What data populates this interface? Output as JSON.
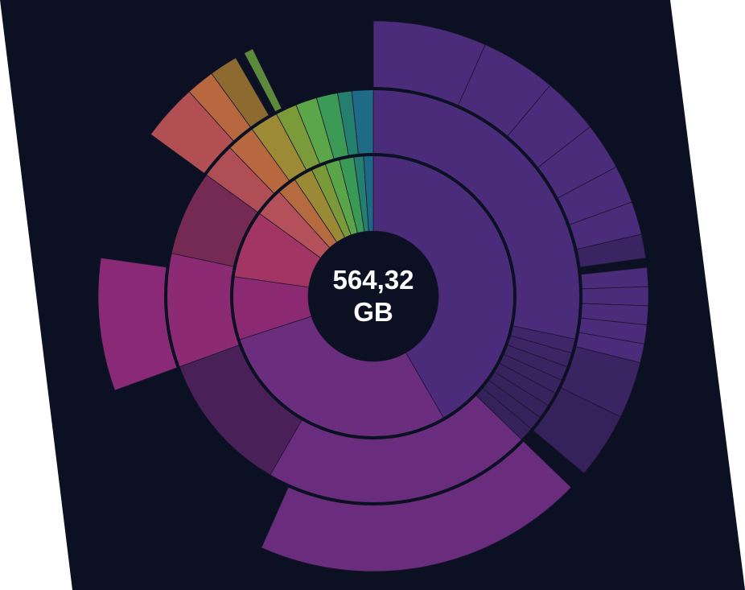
{
  "center": {
    "value_line": "564,32",
    "unit_line": "GB"
  },
  "colors": {
    "panel_background": "#0b1122",
    "page_background": "#ffffff",
    "hole": "#0b1122"
  },
  "chart_data": {
    "type": "sunburst",
    "total": "564,32 GB",
    "rings": [
      {
        "level": 1,
        "segments": [
          {
            "start_deg": 0,
            "end_deg": 150,
            "color": "#4a2c7a"
          },
          {
            "start_deg": 150,
            "end_deg": 252,
            "color": "#6b2e7e"
          },
          {
            "start_deg": 252,
            "end_deg": 278,
            "color": "#8b2a72"
          },
          {
            "start_deg": 278,
            "end_deg": 306,
            "color": "#a33565"
          },
          {
            "start_deg": 306,
            "end_deg": 318,
            "color": "#b4505a"
          },
          {
            "start_deg": 318,
            "end_deg": 326,
            "color": "#b66a40"
          },
          {
            "start_deg": 326,
            "end_deg": 334,
            "color": "#9a8a35"
          },
          {
            "start_deg": 334,
            "end_deg": 340,
            "color": "#7a9a3a"
          },
          {
            "start_deg": 340,
            "end_deg": 346,
            "color": "#5aa548"
          },
          {
            "start_deg": 346,
            "end_deg": 352,
            "color": "#3a9a55"
          },
          {
            "start_deg": 352,
            "end_deg": 356,
            "color": "#237f6e"
          },
          {
            "start_deg": 356,
            "end_deg": 360,
            "color": "#1e6a86"
          }
        ]
      },
      {
        "level": 2,
        "segments": [
          {
            "start_deg": 0,
            "end_deg": 102,
            "color": "#4b2c7b"
          },
          {
            "start_deg": 102,
            "end_deg": 106,
            "color": "#3f2669"
          },
          {
            "start_deg": 106,
            "end_deg": 110,
            "color": "#3d2565"
          },
          {
            "start_deg": 110,
            "end_deg": 114,
            "color": "#3b2462"
          },
          {
            "start_deg": 114,
            "end_deg": 118,
            "color": "#3a2460"
          },
          {
            "start_deg": 118,
            "end_deg": 122,
            "color": "#39235e"
          },
          {
            "start_deg": 122,
            "end_deg": 126,
            "color": "#37235c"
          },
          {
            "start_deg": 126,
            "end_deg": 130,
            "color": "#36225a"
          },
          {
            "start_deg": 130,
            "end_deg": 134,
            "color": "#35225a"
          },
          {
            "start_deg": 134,
            "end_deg": 210,
            "color": "#6a2c7c"
          },
          {
            "start_deg": 210,
            "end_deg": 250,
            "color": "#4a2058"
          },
          {
            "start_deg": 250,
            "end_deg": 282,
            "color": "#8c2a74"
          },
          {
            "start_deg": 282,
            "end_deg": 306,
            "color": "#742a52"
          },
          {
            "start_deg": 306,
            "end_deg": 316,
            "color": "#b04e55"
          },
          {
            "start_deg": 316,
            "end_deg": 324,
            "color": "#b8683e"
          },
          {
            "start_deg": 324,
            "end_deg": 332,
            "color": "#9c8a34"
          },
          {
            "start_deg": 332,
            "end_deg": 338,
            "color": "#7b9b3a"
          },
          {
            "start_deg": 338,
            "end_deg": 344,
            "color": "#5ba648"
          },
          {
            "start_deg": 344,
            "end_deg": 350,
            "color": "#3b9a56"
          },
          {
            "start_deg": 350,
            "end_deg": 354,
            "color": "#247f6e"
          },
          {
            "start_deg": 354,
            "end_deg": 360,
            "color": "#1f6a86"
          }
        ]
      },
      {
        "level": 3,
        "segments": [
          {
            "start_deg": 0,
            "end_deg": 24,
            "color": "#4a2c7a"
          },
          {
            "start_deg": 24,
            "end_deg": 40,
            "color": "#4a2c7a"
          },
          {
            "start_deg": 40,
            "end_deg": 52,
            "color": "#4a2c7a"
          },
          {
            "start_deg": 52,
            "end_deg": 62,
            "color": "#4a2c7a"
          },
          {
            "start_deg": 62,
            "end_deg": 70,
            "color": "#4a2c7a"
          },
          {
            "start_deg": 70,
            "end_deg": 77,
            "color": "#4a2c7a"
          },
          {
            "start_deg": 77,
            "end_deg": 82,
            "color": "#3a2462"
          },
          {
            "start_deg": 84,
            "end_deg": 88,
            "color": "#4a2c7a"
          },
          {
            "start_deg": 88,
            "end_deg": 92,
            "color": "#4a2c7a"
          },
          {
            "start_deg": 92,
            "end_deg": 96,
            "color": "#4a2c7a"
          },
          {
            "start_deg": 96,
            "end_deg": 100,
            "color": "#4a2c7a"
          },
          {
            "start_deg": 100,
            "end_deg": 104,
            "color": "#4a2c7a"
          },
          {
            "start_deg": 104,
            "end_deg": 116,
            "color": "#3a2462"
          },
          {
            "start_deg": 116,
            "end_deg": 130,
            "color": "#36225a"
          },
          {
            "start_deg": 134,
            "end_deg": 204,
            "color": "#6a2c7c"
          },
          {
            "start_deg": 250,
            "end_deg": 278,
            "color": "#8a2a76"
          },
          {
            "start_deg": 306,
            "end_deg": 318,
            "color": "#b24f52"
          },
          {
            "start_deg": 318,
            "end_deg": 324,
            "color": "#b8683e"
          },
          {
            "start_deg": 324,
            "end_deg": 330,
            "color": "#8c6a30"
          },
          {
            "start_deg": 332,
            "end_deg": 334,
            "color": "#5a8a3a"
          }
        ]
      }
    ],
    "ring_radii": [
      80,
      176,
      258,
      342
    ]
  }
}
